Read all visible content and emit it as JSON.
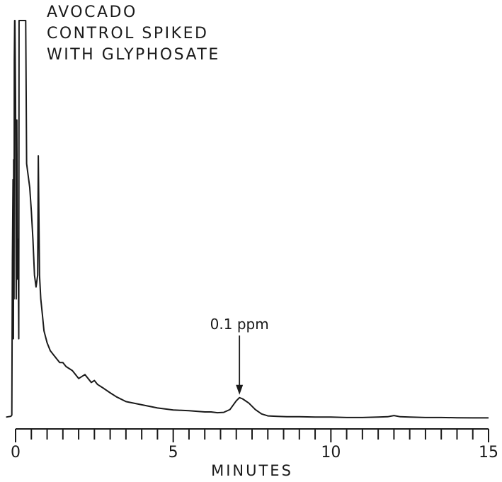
{
  "chart_data": {
    "type": "line",
    "title_lines": [
      "AVOCADO",
      "CONTROL SPIKED",
      "WITH GLYPHOSATE"
    ],
    "xlabel": "MINUTES",
    "ylabel": "",
    "xlim": [
      0,
      15
    ],
    "ylim": [
      0,
      100
    ],
    "grid": false,
    "x_ticks": [
      0,
      0.5,
      1,
      1.5,
      2,
      2.5,
      3,
      3.5,
      4,
      4.5,
      5,
      5.5,
      6,
      6.5,
      7,
      7.5,
      8,
      8.5,
      9,
      9.5,
      10,
      10.5,
      11,
      11.5,
      12,
      12.5,
      13,
      13.5,
      14,
      14.5,
      15
    ],
    "x_tick_labels": [
      {
        "x": 0,
        "label": "0"
      },
      {
        "x": 5,
        "label": "5"
      },
      {
        "x": 10,
        "label": "10"
      },
      {
        "x": 15,
        "label": "15"
      }
    ],
    "annotation": {
      "x": 7.1,
      "y": 5.2,
      "label": "0.1 ppm"
    },
    "series": [
      {
        "x": [
          -0.3,
          -0.15,
          -0.12,
          -0.1,
          -0.08,
          -0.07,
          -0.06,
          -0.05,
          -0.04,
          -0.03,
          -0.02,
          0.0,
          0.02,
          0.04,
          0.06,
          0.08,
          0.1,
          0.11,
          0.13,
          0.15,
          0.2,
          0.25,
          0.3,
          0.32,
          0.35,
          0.4,
          0.45,
          0.5,
          0.55,
          0.6,
          0.65,
          0.7,
          0.72,
          0.74,
          0.76,
          0.8,
          0.85,
          0.9,
          1.0,
          1.1,
          1.2,
          1.3,
          1.4,
          1.5,
          1.6,
          1.8,
          2.0,
          2.2,
          2.4,
          2.5,
          2.6,
          2.8,
          3.0,
          3.2,
          3.5,
          4.0,
          4.5,
          5.0,
          5.5,
          6.0,
          6.2,
          6.4,
          6.6,
          6.8,
          7.0,
          7.1,
          7.2,
          7.4,
          7.6,
          7.8,
          8.0,
          8.3,
          8.6,
          9.0,
          9.5,
          10.0,
          10.5,
          11.0,
          11.5,
          11.8,
          12.0,
          12.2,
          12.5,
          13.0,
          13.5,
          14.0,
          14.5,
          15.0
        ],
        "y": [
          0.3,
          0.5,
          0.8,
          40,
          60,
          20,
          65,
          30,
          90,
          100,
          100,
          80,
          30,
          75,
          35,
          45,
          20,
          100,
          100,
          100,
          100,
          100,
          100,
          100,
          64,
          61,
          58,
          52,
          45,
          36,
          33,
          36,
          66,
          50,
          36,
          30,
          26,
          22,
          19,
          17,
          16,
          15,
          14,
          14,
          13,
          12,
          10,
          11,
          9,
          9.5,
          8.5,
          7.5,
          6.4,
          5.4,
          4.2,
          3.4,
          2.6,
          2.1,
          1.9,
          1.6,
          1.6,
          1.4,
          1.5,
          2.2,
          4.4,
          5.2,
          4.9,
          3.8,
          2.2,
          1.1,
          0.6,
          0.5,
          0.4,
          0.4,
          0.3,
          0.3,
          0.2,
          0.2,
          0.3,
          0.4,
          0.7,
          0.4,
          0.3,
          0.2,
          0.2,
          0.15,
          0.1,
          0.1
        ]
      }
    ]
  }
}
